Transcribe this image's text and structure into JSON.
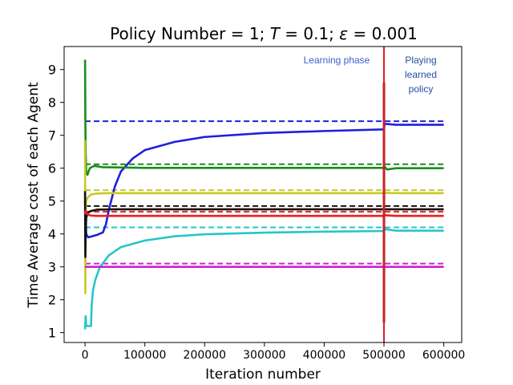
{
  "chart_data": {
    "type": "line",
    "title_parts": {
      "a": "Policy Number = 1; ",
      "b": "T",
      "c": " = 0.1; ",
      "d": "ε",
      "e": " = 0.001"
    },
    "xlabel": "Iteration number",
    "ylabel": "Time Average cost of each Agent",
    "xlim": [
      -35000,
      630000
    ],
    "ylim": [
      0.7,
      9.7
    ],
    "xticks": [
      0,
      100000,
      200000,
      300000,
      400000,
      500000,
      600000
    ],
    "xtick_labels": [
      "0",
      "100000",
      "200000",
      "300000",
      "400000",
      "500000",
      "600000"
    ],
    "yticks": [
      1,
      2,
      3,
      4,
      5,
      6,
      7,
      8,
      9
    ],
    "ytick_labels": [
      "1",
      "2",
      "3",
      "4",
      "5",
      "6",
      "7",
      "8",
      "9"
    ],
    "grid": false,
    "phase_boundary_x": 500000,
    "phase_boundary_color": "#e41a1c",
    "annotations": {
      "learning": "Learning phase",
      "playing": [
        "Playing",
        "learned",
        "policy"
      ],
      "learning_color": "#3a5fcd",
      "playing_color": "#1f4e9e"
    },
    "reference_levels": [
      {
        "color": "#1f1fe0",
        "y": 7.43
      },
      {
        "color": "#1a8c1a",
        "y": 6.12
      },
      {
        "color": "#c8c828",
        "y": 5.33
      },
      {
        "color": "#111111",
        "y": 4.85
      },
      {
        "color": "#e82020",
        "y": 4.68
      },
      {
        "color": "#26c6c6",
        "y": 4.2
      },
      {
        "color": "#cc22cc",
        "y": 3.1
      }
    ],
    "series": [
      {
        "color": "#1f1fe0",
        "x": [
          0,
          2000,
          5000,
          10000,
          20000,
          30000,
          35000,
          40000,
          50000,
          60000,
          80000,
          100000,
          150000,
          200000,
          300000,
          400000,
          500000,
          501000,
          520000,
          600000
        ],
        "y": [
          5.0,
          4.0,
          3.9,
          3.92,
          3.97,
          4.05,
          4.3,
          4.75,
          5.45,
          5.9,
          6.3,
          6.55,
          6.8,
          6.95,
          7.07,
          7.13,
          7.18,
          7.35,
          7.32,
          7.32
        ]
      },
      {
        "color": "#1a8c1a",
        "x": [
          0,
          500,
          1000,
          2000,
          4000,
          8000,
          15000,
          30000,
          100000,
          500000,
          501000,
          505000,
          520000,
          600000
        ],
        "y": [
          9.3,
          7.5,
          6.5,
          5.9,
          5.8,
          6.0,
          6.07,
          6.03,
          6.01,
          6.01,
          6.05,
          5.96,
          6.0,
          6.0
        ]
      },
      {
        "color": "#c8c828",
        "x": [
          0,
          500,
          1000,
          2000,
          4000,
          10000,
          20000,
          40000,
          100000,
          500000,
          501000,
          520000,
          600000
        ],
        "y": [
          6.85,
          2.2,
          4.5,
          5.0,
          5.1,
          5.2,
          5.23,
          5.24,
          5.24,
          5.24,
          5.25,
          5.24,
          5.24
        ]
      },
      {
        "color": "#111111",
        "x": [
          0,
          500,
          1000,
          2000,
          5000,
          10000,
          20000,
          50000,
          100000,
          500000,
          501000,
          520000,
          600000
        ],
        "y": [
          5.3,
          3.3,
          4.0,
          4.5,
          4.65,
          4.7,
          4.74,
          4.75,
          4.75,
          4.75,
          4.75,
          4.75,
          4.75
        ]
      },
      {
        "color": "#e82020",
        "x": [
          0,
          1000,
          3000,
          6000,
          10000,
          20000,
          30000,
          50000,
          100000,
          500000,
          501000,
          520000,
          600000
        ],
        "y": [
          4.6,
          4.7,
          4.62,
          4.58,
          4.56,
          4.55,
          4.55,
          4.55,
          4.55,
          4.55,
          4.57,
          4.55,
          4.55
        ]
      },
      {
        "color": "#26c6c6",
        "x": [
          0,
          1000,
          2000,
          5000,
          10000,
          11000,
          13000,
          17000,
          25000,
          40000,
          60000,
          100000,
          150000,
          200000,
          300000,
          400000,
          500000,
          501000,
          520000,
          600000
        ],
        "y": [
          1.1,
          1.5,
          1.2,
          1.2,
          1.2,
          1.8,
          2.25,
          2.6,
          3.0,
          3.35,
          3.6,
          3.8,
          3.93,
          3.99,
          4.04,
          4.07,
          4.09,
          4.15,
          4.1,
          4.1
        ]
      },
      {
        "color": "#cc22cc",
        "x": [
          0,
          1000,
          100000,
          500000,
          501000,
          600000
        ],
        "y": [
          3.0,
          3.0,
          3.0,
          3.0,
          3.0,
          3.0
        ]
      }
    ],
    "legend": "none"
  }
}
